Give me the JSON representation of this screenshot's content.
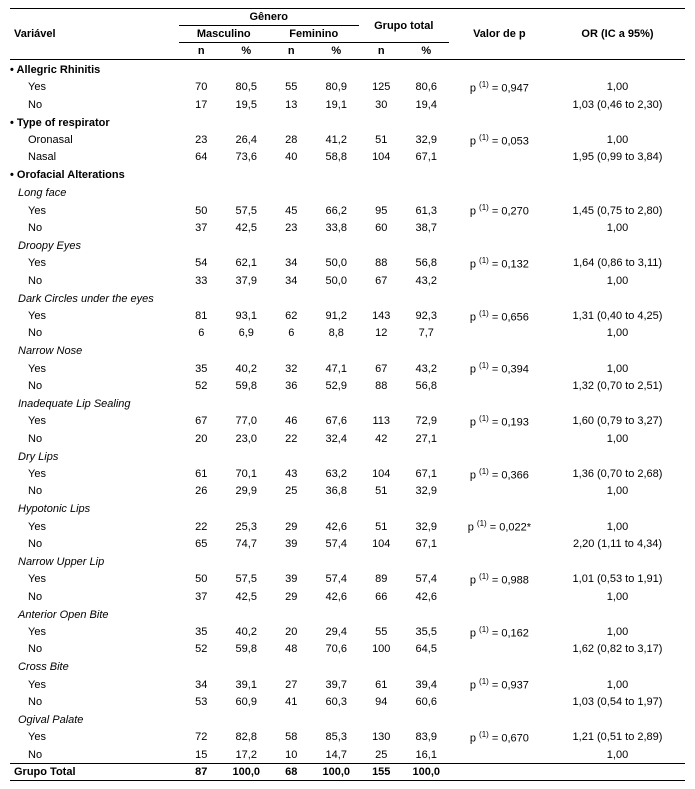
{
  "headers": {
    "variavel": "Variável",
    "genero": "Gênero",
    "masculino": "Masculino",
    "feminino": "Feminino",
    "grupo_total": "Grupo total",
    "valor_p": "Valor de p",
    "or_ic": "OR (IC a 95%)",
    "n": "n",
    "pct": "%"
  },
  "sections": [
    {
      "title": "Allegric Rhinitis",
      "italic": false,
      "bullet": true,
      "rows": [
        {
          "label": "Yes",
          "m_n": "70",
          "m_p": "80,5",
          "f_n": "55",
          "f_p": "80,9",
          "t_n": "125",
          "t_p": "80,6",
          "pval": "p (1) = 0,947",
          "or": "1,00"
        },
        {
          "label": "No",
          "m_n": "17",
          "m_p": "19,5",
          "f_n": "13",
          "f_p": "19,1",
          "t_n": "30",
          "t_p": "19,4",
          "pval": "",
          "or": "1,03 (0,46 to 2,30)"
        }
      ]
    },
    {
      "title": "Type of respirator",
      "italic": false,
      "bullet": true,
      "rows": [
        {
          "label": "Oronasal",
          "m_n": "23",
          "m_p": "26,4",
          "f_n": "28",
          "f_p": "41,2",
          "t_n": "51",
          "t_p": "32,9",
          "pval": "p (1) = 0,053",
          "or": "1,00"
        },
        {
          "label": "Nasal",
          "m_n": "64",
          "m_p": "73,6",
          "f_n": "40",
          "f_p": "58,8",
          "t_n": "104",
          "t_p": "67,1",
          "pval": "",
          "or": "1,95 (0,99 to 3,84)"
        }
      ]
    },
    {
      "title": "Orofacial Alterations",
      "italic": false,
      "bullet": true,
      "rows": []
    },
    {
      "title": "Long face",
      "italic": true,
      "bullet": false,
      "rows": [
        {
          "label": "Yes",
          "m_n": "50",
          "m_p": "57,5",
          "f_n": "45",
          "f_p": "66,2",
          "t_n": "95",
          "t_p": "61,3",
          "pval": "p (1) = 0,270",
          "or": "1,45 (0,75 to 2,80)"
        },
        {
          "label": "No",
          "m_n": "37",
          "m_p": "42,5",
          "f_n": "23",
          "f_p": "33,8",
          "t_n": "60",
          "t_p": "38,7",
          "pval": "",
          "or": "1,00"
        }
      ]
    },
    {
      "title": "Droopy Eyes",
      "italic": true,
      "bullet": false,
      "rows": [
        {
          "label": "Yes",
          "m_n": "54",
          "m_p": "62,1",
          "f_n": "34",
          "f_p": "50,0",
          "t_n": "88",
          "t_p": "56,8",
          "pval": "p (1) = 0,132",
          "or": "1,64 (0,86 to 3,11)"
        },
        {
          "label": "No",
          "m_n": "33",
          "m_p": "37,9",
          "f_n": "34",
          "f_p": "50,0",
          "t_n": "67",
          "t_p": "43,2",
          "pval": "",
          "or": "1,00"
        }
      ]
    },
    {
      "title": "Dark Circles under the eyes",
      "italic": true,
      "bullet": false,
      "rows": [
        {
          "label": "Yes",
          "m_n": "81",
          "m_p": "93,1",
          "f_n": "62",
          "f_p": "91,2",
          "t_n": "143",
          "t_p": "92,3",
          "pval": "p (1) = 0,656",
          "or": "1,31 (0,40 to 4,25)"
        },
        {
          "label": "No",
          "m_n": "6",
          "m_p": "6,9",
          "f_n": "6",
          "f_p": "8,8",
          "t_n": "12",
          "t_p": "7,7",
          "pval": "",
          "or": "1,00"
        }
      ]
    },
    {
      "title": "Narrow Nose",
      "italic": true,
      "bullet": false,
      "rows": [
        {
          "label": "Yes",
          "m_n": "35",
          "m_p": "40,2",
          "f_n": "32",
          "f_p": "47,1",
          "t_n": "67",
          "t_p": "43,2",
          "pval": "p (1) = 0,394",
          "or": "1,00"
        },
        {
          "label": "No",
          "m_n": "52",
          "m_p": "59,8",
          "f_n": "36",
          "f_p": "52,9",
          "t_n": "88",
          "t_p": "56,8",
          "pval": "",
          "or": "1,32 (0,70 to 2,51)"
        }
      ]
    },
    {
      "title": "Inadequate Lip Sealing",
      "italic": true,
      "bullet": false,
      "rows": [
        {
          "label": "Yes",
          "m_n": "67",
          "m_p": "77,0",
          "f_n": "46",
          "f_p": "67,6",
          "t_n": "113",
          "t_p": "72,9",
          "pval": "p (1) = 0,193",
          "or": "1,60 (0,79 to 3,27)"
        },
        {
          "label": "No",
          "m_n": "20",
          "m_p": "23,0",
          "f_n": "22",
          "f_p": "32,4",
          "t_n": "42",
          "t_p": "27,1",
          "pval": "",
          "or": "1,00"
        }
      ]
    },
    {
      "title": "Dry Lips",
      "italic": true,
      "bullet": false,
      "rows": [
        {
          "label": "Yes",
          "m_n": "61",
          "m_p": "70,1",
          "f_n": "43",
          "f_p": "63,2",
          "t_n": "104",
          "t_p": "67,1",
          "pval": "p (1) = 0,366",
          "or": "1,36 (0,70 to 2,68)"
        },
        {
          "label": "No",
          "m_n": "26",
          "m_p": "29,9",
          "f_n": "25",
          "f_p": "36,8",
          "t_n": "51",
          "t_p": "32,9",
          "pval": "",
          "or": "1,00"
        }
      ]
    },
    {
      "title": "Hypotonic Lips",
      "italic": true,
      "bullet": false,
      "rows": [
        {
          "label": "Yes",
          "m_n": "22",
          "m_p": "25,3",
          "f_n": "29",
          "f_p": "42,6",
          "t_n": "51",
          "t_p": "32,9",
          "pval": "p (1) = 0,022*",
          "or": "1,00"
        },
        {
          "label": "No",
          "m_n": "65",
          "m_p": "74,7",
          "f_n": "39",
          "f_p": "57,4",
          "t_n": "104",
          "t_p": "67,1",
          "pval": "",
          "or": "2,20 (1,11 to 4,34)"
        }
      ]
    },
    {
      "title": "Narrow Upper Lip",
      "italic": true,
      "bullet": false,
      "rows": [
        {
          "label": "Yes",
          "m_n": "50",
          "m_p": "57,5",
          "f_n": "39",
          "f_p": "57,4",
          "t_n": "89",
          "t_p": "57,4",
          "pval": "p (1) = 0,988",
          "or": "1,01 (0,53 to 1,91)"
        },
        {
          "label": "No",
          "m_n": "37",
          "m_p": "42,5",
          "f_n": "29",
          "f_p": "42,6",
          "t_n": "66",
          "t_p": "42,6",
          "pval": "",
          "or": "1,00"
        }
      ]
    },
    {
      "title": "Anterior Open Bite",
      "italic": true,
      "bullet": false,
      "rows": [
        {
          "label": "Yes",
          "m_n": "35",
          "m_p": "40,2",
          "f_n": "20",
          "f_p": "29,4",
          "t_n": "55",
          "t_p": "35,5",
          "pval": "p (1) = 0,162",
          "or": "1,00"
        },
        {
          "label": "No",
          "m_n": "52",
          "m_p": "59,8",
          "f_n": "48",
          "f_p": "70,6",
          "t_n": "100",
          "t_p": "64,5",
          "pval": "",
          "or": "1,62 (0,82 to 3,17)"
        }
      ]
    },
    {
      "title": "Cross Bite",
      "italic": true,
      "bullet": false,
      "rows": [
        {
          "label": "Yes",
          "m_n": "34",
          "m_p": "39,1",
          "f_n": "27",
          "f_p": "39,7",
          "t_n": "61",
          "t_p": "39,4",
          "pval": "p (1) = 0,937",
          "or": "1,00"
        },
        {
          "label": "No",
          "m_n": "53",
          "m_p": "60,9",
          "f_n": "41",
          "f_p": "60,3",
          "t_n": "94",
          "t_p": "60,6",
          "pval": "",
          "or": "1,03 (0,54 to 1,97)"
        }
      ]
    },
    {
      "title": "Ogival Palate",
      "italic": true,
      "bullet": false,
      "rows": [
        {
          "label": "Yes",
          "m_n": "72",
          "m_p": "82,8",
          "f_n": "58",
          "f_p": "85,3",
          "t_n": "130",
          "t_p": "83,9",
          "pval": "p (1) = 0,670",
          "or": "1,21 (0,51 to 2,89)"
        },
        {
          "label": "No",
          "m_n": "15",
          "m_p": "17,2",
          "f_n": "10",
          "f_p": "14,7",
          "t_n": "25",
          "t_p": "16,1",
          "pval": "",
          "or": "1,00"
        }
      ]
    }
  ],
  "total": {
    "label": "Grupo Total",
    "m_n": "87",
    "m_p": "100,0",
    "f_n": "68",
    "f_p": "100,0",
    "t_n": "155",
    "t_p": "100,0"
  }
}
